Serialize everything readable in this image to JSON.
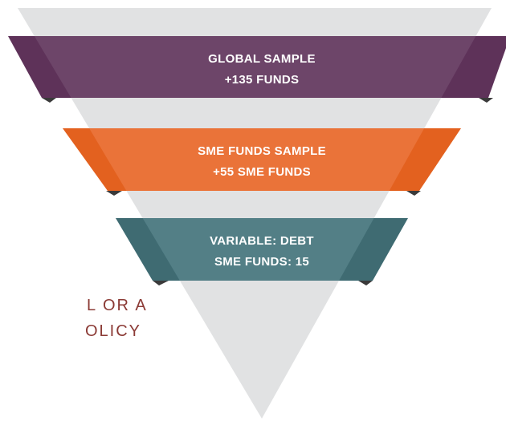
{
  "funnel": {
    "bands": [
      {
        "line1": "GLOBAL SAMPLE",
        "line2": "+135 FUNDS"
      },
      {
        "line1": "SME FUNDS SAMPLE",
        "line2": "+55 SME FUNDS"
      },
      {
        "line1": "VARIABLE: DEBT",
        "line2": "SME FUNDS: 15"
      }
    ]
  },
  "side_text": [
    "L OR A",
    "OLICY"
  ]
}
